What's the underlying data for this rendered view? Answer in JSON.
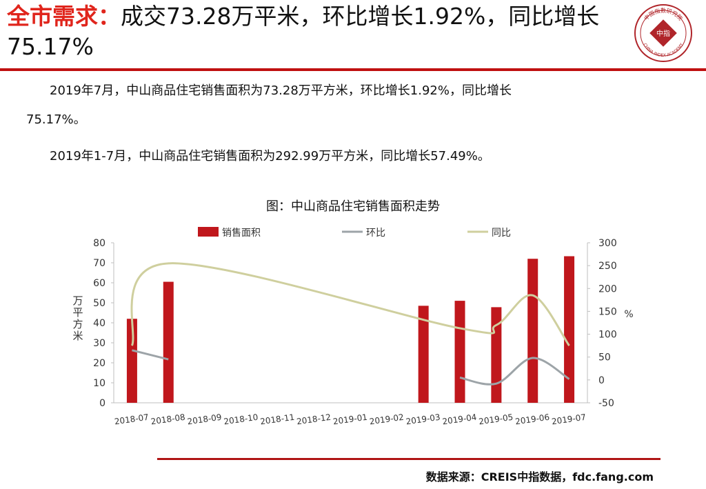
{
  "header": {
    "title_lead": "全市需求：",
    "title_rest": "成交73.28万平米，环比增长1.92%，同比增长75.17%",
    "logo_text_top": "中国指数研究院",
    "logo_center": "中指",
    "logo_text_bottom": "CHINA INDEX ACADEMY"
  },
  "body": {
    "paragraph_1": "2019年7月，中山商品住宅销售面积为73.28万平方米，环比增长1.92%，同比增长",
    "paragraph_1_cont": "75.17%。",
    "paragraph_2": "2019年1-7月，中山商品住宅销售面积为292.99万平方米，同比增长57.49%。"
  },
  "chart_title": "图：中山商品住宅销售面积走势",
  "chart_data": {
    "type": "bar",
    "categories": [
      "2018-07",
      "2018-08",
      "2018-09",
      "2018-10",
      "2018-11",
      "2018-12",
      "2019-01",
      "2019-02",
      "2019-03",
      "2019-04",
      "2019-05",
      "2019-06",
      "2019-07"
    ],
    "series": [
      {
        "name": "销售面积",
        "type": "bar",
        "axis": "left",
        "values": [
          42,
          60.5,
          null,
          null,
          null,
          null,
          null,
          null,
          48.5,
          51,
          47.8,
          72,
          73.28
        ]
      },
      {
        "name": "环比",
        "type": "line",
        "axis": "right",
        "values": [
          65,
          45,
          null,
          null,
          null,
          null,
          null,
          null,
          null,
          5,
          -8,
          48,
          2
        ]
      },
      {
        "name": "同比",
        "type": "line",
        "axis": "right",
        "values": [
          75,
          255,
          null,
          null,
          null,
          null,
          null,
          null,
          null,
          113,
          120,
          185,
          75
        ]
      }
    ],
    "ylabel": "万平方米",
    "y2label": "%",
    "ylim": [
      0,
      80
    ],
    "y2lim": [
      -50,
      300
    ],
    "yticks": [
      "0",
      "10",
      "20",
      "30",
      "40",
      "50",
      "60",
      "70",
      "80"
    ],
    "y2ticks": [
      "-50",
      "0",
      "50",
      "100",
      "150",
      "200",
      "250",
      "300"
    ],
    "legend_position": "top",
    "grid": false,
    "colors": {
      "bar": "#c0171c",
      "mom": "#9da4a8",
      "yoy": "#cfcf9e"
    }
  },
  "footer": {
    "source": "数据来源：CREIS中指数据，fdc.fang.com"
  }
}
